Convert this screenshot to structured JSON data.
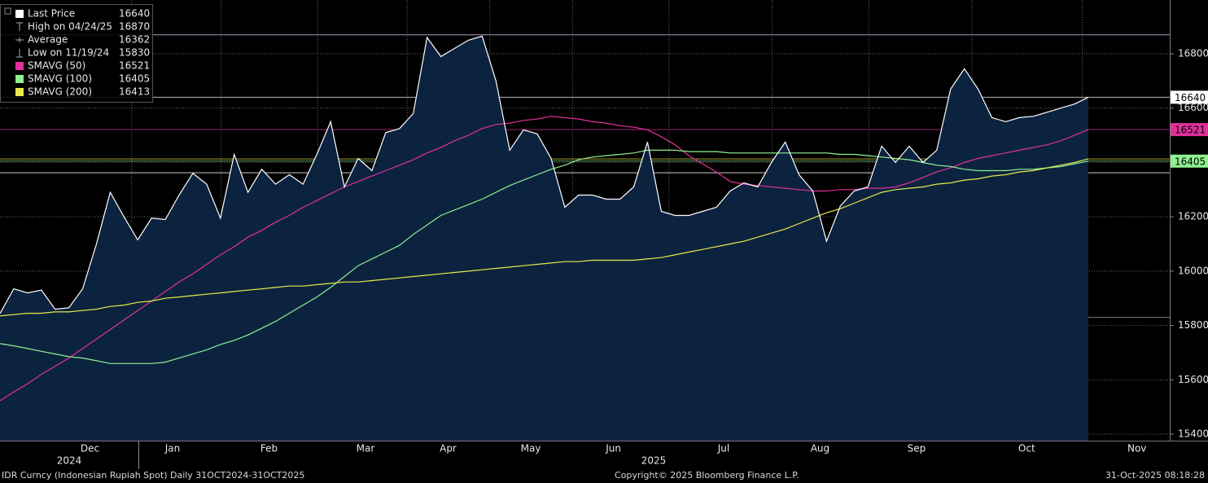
{
  "chart_data": {
    "type": "line",
    "footer": "IDR Curncy (Indonesian Rupiah Spot) Daily 31OCT2024-31OCT2025",
    "copyright": "Copyright© 2025 Bloomberg Finance L.P.",
    "timestamp": "31-Oct-2025 08:18:28",
    "years": [
      "2024",
      "2025"
    ],
    "categories": [
      null,
      null,
      null,
      null,
      null,
      null,
      null,
      "Dec",
      null,
      null,
      null,
      null,
      null,
      "Jan",
      null,
      null,
      null,
      null,
      null,
      null,
      "Feb",
      null,
      null,
      null,
      null,
      null,
      null,
      "Mar",
      null,
      null,
      null,
      null,
      null,
      "Apr",
      null,
      null,
      null,
      null,
      null,
      "May",
      null,
      null,
      null,
      null,
      null,
      "Jun",
      null,
      null,
      null,
      null,
      null,
      null,
      null,
      "Jul",
      null,
      null,
      null,
      null,
      null,
      null,
      "Aug",
      null,
      null,
      null,
      null,
      null,
      null,
      "Sep",
      null,
      null,
      null,
      null,
      null,
      null,
      null,
      "Oct",
      null,
      null,
      null,
      null,
      null,
      null,
      null,
      "Nov"
    ],
    "ylim": [
      15376,
      16998
    ],
    "yticks": [
      15400,
      15600,
      15800,
      16000,
      16200,
      16400,
      16600,
      16800
    ],
    "grid": true,
    "series": [
      {
        "name": "Last Price",
        "color": "#ffffff",
        "last": 16640,
        "badge": true,
        "fill": "#0c2340",
        "values": [
          15844,
          15935,
          15920,
          15930,
          15860,
          15865,
          15935,
          16100,
          16290,
          16200,
          16115,
          16195,
          16190,
          16280,
          16360,
          16320,
          16195,
          16430,
          16290,
          16375,
          16320,
          16355,
          16320,
          16430,
          16550,
          16310,
          16415,
          16370,
          16510,
          16525,
          16580,
          16860,
          16790,
          16820,
          16850,
          16865,
          16700,
          16445,
          16520,
          16505,
          16415,
          16235,
          16280,
          16280,
          16265,
          16265,
          16310,
          16475,
          16220,
          16205,
          16205,
          16220,
          16235,
          16295,
          16325,
          16310,
          16400,
          16475,
          16355,
          16295,
          16110,
          16240,
          16295,
          16310,
          16460,
          16400,
          16460,
          16400,
          16445,
          16670,
          16745,
          16670,
          16565,
          16550,
          16565,
          16570,
          16585,
          16600,
          16615,
          16640,
          null,
          null,
          null,
          null
        ]
      },
      {
        "name": "SMAVG (50)",
        "color": "#e0309b",
        "last": 16521,
        "badge": true,
        "values": [
          15523,
          15555,
          15585,
          15620,
          15650,
          15680,
          15715,
          15750,
          15785,
          15820,
          15855,
          15890,
          15925,
          15960,
          15990,
          16025,
          16060,
          16090,
          16125,
          16150,
          16180,
          16205,
          16235,
          16260,
          16285,
          16310,
          16330,
          16350,
          16370,
          16390,
          16410,
          16435,
          16455,
          16480,
          16500,
          16525,
          16540,
          16545,
          16555,
          16560,
          16570,
          16565,
          16560,
          16550,
          16545,
          16535,
          16530,
          16520,
          16495,
          16465,
          16425,
          16395,
          16365,
          16330,
          16320,
          16315,
          16310,
          16305,
          16300,
          16295,
          16295,
          16300,
          16300,
          16305,
          16305,
          16310,
          16325,
          16345,
          16365,
          16380,
          16400,
          16415,
          16425,
          16435,
          16445,
          16455,
          16465,
          16480,
          16500,
          16521,
          null,
          null,
          null,
          null
        ]
      },
      {
        "name": "SMAVG (100)",
        "color": "#8ff08f",
        "last": 16405,
        "badge": true,
        "values": [
          15733,
          15725,
          15715,
          15705,
          15695,
          15685,
          15680,
          15670,
          15660,
          15660,
          15660,
          15660,
          15665,
          15680,
          15695,
          15710,
          15730,
          15745,
          15765,
          15790,
          15815,
          15845,
          15875,
          15905,
          15940,
          15980,
          16020,
          16045,
          16070,
          16095,
          16135,
          16170,
          16205,
          16225,
          16245,
          16265,
          16290,
          16315,
          16335,
          16355,
          16375,
          16390,
          16410,
          16420,
          16425,
          16430,
          16435,
          16445,
          16445,
          16445,
          16440,
          16440,
          16440,
          16435,
          16435,
          16435,
          16435,
          16435,
          16435,
          16435,
          16435,
          16430,
          16430,
          16425,
          16420,
          16415,
          16410,
          16400,
          16390,
          16385,
          16375,
          16370,
          16370,
          16370,
          16375,
          16375,
          16380,
          16385,
          16395,
          16405,
          null,
          null,
          null,
          null
        ]
      },
      {
        "name": "SMAVG (200)",
        "color": "#e8e84a",
        "last": 16413,
        "badge": false,
        "values": [
          15835,
          15840,
          15845,
          15845,
          15850,
          15850,
          15855,
          15860,
          15870,
          15875,
          15885,
          15890,
          15900,
          15905,
          15910,
          15915,
          15920,
          15925,
          15930,
          15935,
          15940,
          15945,
          15945,
          15950,
          15955,
          15960,
          15960,
          15965,
          15970,
          15975,
          15980,
          15985,
          15990,
          15995,
          16000,
          16005,
          16010,
          16015,
          16020,
          16025,
          16030,
          16035,
          16035,
          16040,
          16040,
          16040,
          16040,
          16045,
          16050,
          16060,
          16070,
          16080,
          16090,
          16100,
          16110,
          16125,
          16140,
          16155,
          16175,
          16195,
          16215,
          16230,
          16250,
          16270,
          16290,
          16300,
          16305,
          16310,
          16320,
          16325,
          16335,
          16340,
          16350,
          16355,
          16365,
          16370,
          16380,
          16390,
          16400,
          16413,
          null,
          null,
          null,
          null
        ]
      }
    ],
    "stats": [
      {
        "label": "High on 04/24/25",
        "value": 16870,
        "color": "#c9c3f0"
      },
      {
        "label": "Average",
        "value": 16362,
        "color": "#ffffff"
      },
      {
        "label": "Low on 11/19/24",
        "value": 15830,
        "color": "#9a9a9a"
      }
    ]
  }
}
